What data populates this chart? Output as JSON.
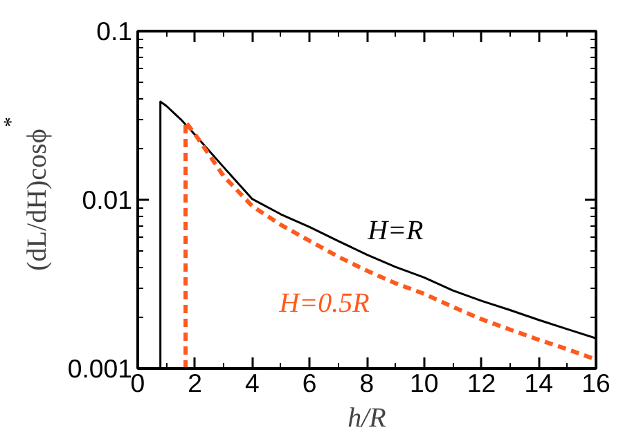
{
  "chart_data": {
    "type": "line",
    "xlabel": "h/R",
    "ylabel": "(dL/dH)cosϕ$^{*}$",
    "log": "y",
    "xlim": [
      0,
      16
    ],
    "ylim": [
      0.001,
      0.1
    ],
    "xticks": [
      0,
      2,
      4,
      6,
      8,
      10,
      12,
      14,
      16
    ],
    "yticks": [
      0.001,
      0.01,
      0.1
    ],
    "grid": false,
    "legend": false,
    "series": [
      {
        "name": "H=R",
        "color": "#000000",
        "line_style": "solid",
        "x": [
          0.79,
          0.79,
          1,
          1.5,
          2,
          3,
          4,
          5,
          6,
          7,
          8,
          9,
          10,
          11,
          12,
          13,
          14,
          15,
          16
        ],
        "values": [
          0.001,
          0.0382,
          0.036,
          0.03,
          0.0243,
          0.0156,
          0.0101,
          0.0082,
          0.0069,
          0.0057,
          0.00473,
          0.004,
          0.00346,
          0.0029,
          0.00252,
          0.00222,
          0.00194,
          0.00171,
          0.00151
        ]
      },
      {
        "name": "H=0.5R",
        "color": "#ff5a1e",
        "line_style": "dashed",
        "x": [
          1.67,
          1.67,
          2,
          3,
          4,
          5,
          6,
          7,
          8,
          9,
          10,
          11,
          12,
          13,
          14,
          15,
          16
        ],
        "values": [
          0.001,
          0.029,
          0.0245,
          0.0138,
          0.00917,
          0.0071,
          0.00571,
          0.0046,
          0.0038,
          0.0032,
          0.00277,
          0.00232,
          0.00196,
          0.0017,
          0.00148,
          0.0013,
          0.00113
        ]
      }
    ]
  }
}
